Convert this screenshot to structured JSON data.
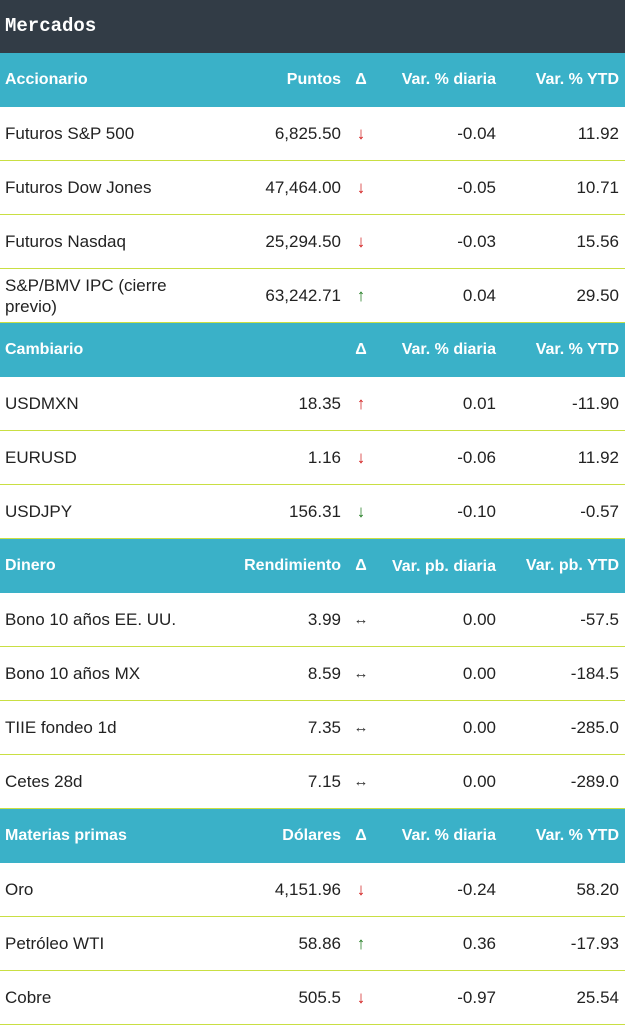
{
  "title": "Mercados",
  "sections": [
    {
      "header": {
        "name": "Accionario",
        "value": "Puntos",
        "delta": "Δ",
        "daily": "Var. % diaria",
        "ytd": "Var. % YTD"
      },
      "rows": [
        {
          "name": "Futuros S&P 500",
          "value": "6,825.50",
          "arrow": "↓",
          "daily": "-0.04",
          "ytd": "11.92"
        },
        {
          "name": "Futuros Dow Jones",
          "value": "47,464.00",
          "arrow": "↓",
          "daily": "-0.05",
          "ytd": "10.71"
        },
        {
          "name": "Futuros Nasdaq",
          "value": "25,294.50",
          "arrow": "↓",
          "daily": "-0.03",
          "ytd": "15.56"
        },
        {
          "name": "S&P/BMV IPC (cierre previo)",
          "value": "63,242.71",
          "arrow": "↑",
          "daily": "0.04",
          "ytd": "29.50"
        }
      ]
    },
    {
      "header": {
        "name": "Cambiario",
        "value": "",
        "delta": "Δ",
        "daily": "Var. % diaria",
        "ytd": "Var. % YTD"
      },
      "rows": [
        {
          "name": "USDMXN",
          "value": "18.35",
          "arrow": "↑",
          "daily": "0.01",
          "ytd": "-11.90"
        },
        {
          "name": "EURUSD",
          "value": "1.16",
          "arrow": "↓",
          "daily": "-0.06",
          "ytd": "11.92"
        },
        {
          "name": "USDJPY",
          "value": "156.31",
          "arrow": "↓",
          "daily": "-0.10",
          "ytd": "-0.57"
        }
      ]
    },
    {
      "header": {
        "name": "Dinero",
        "value": "Rendimiento",
        "delta": "Δ",
        "daily": "Var. pb. diaria",
        "ytd": "Var. pb. YTD"
      },
      "rows": [
        {
          "name": "Bono 10 años EE. UU.",
          "value": "3.99",
          "arrow": "↔",
          "daily": "0.00",
          "ytd": "-57.5"
        },
        {
          "name": "Bono 10 años MX",
          "value": "8.59",
          "arrow": "↔",
          "daily": "0.00",
          "ytd": "-184.5"
        },
        {
          "name": "TIIE fondeo 1d",
          "value": "7.35",
          "arrow": "↔",
          "daily": "0.00",
          "ytd": "-285.0"
        },
        {
          "name": "Cetes 28d",
          "value": "7.15",
          "arrow": "↔",
          "daily": "0.00",
          "ytd": "-289.0"
        }
      ]
    },
    {
      "header": {
        "name": "Materias primas",
        "value": "Dólares",
        "delta": "Δ",
        "daily": "Var. % diaria",
        "ytd": "Var. % YTD"
      },
      "rows": [
        {
          "name": "Oro",
          "value": "4,151.96",
          "arrow": "↓",
          "daily": "-0.24",
          "ytd": "58.20"
        },
        {
          "name": "Petróleo WTI",
          "value": "58.86",
          "arrow": "↑",
          "daily": "0.36",
          "ytd": "-17.93"
        },
        {
          "name": "Cobre",
          "value": "505.5",
          "arrow": "↓",
          "daily": "-0.97",
          "ytd": "25.54"
        }
      ]
    }
  ],
  "colors": {
    "title_bg": "#323c46",
    "header_bg": "#3ab1c8",
    "row_divider": "#c9df43",
    "up_arrow": "#1e7a1e",
    "down_arrow": "#d21c1c"
  }
}
